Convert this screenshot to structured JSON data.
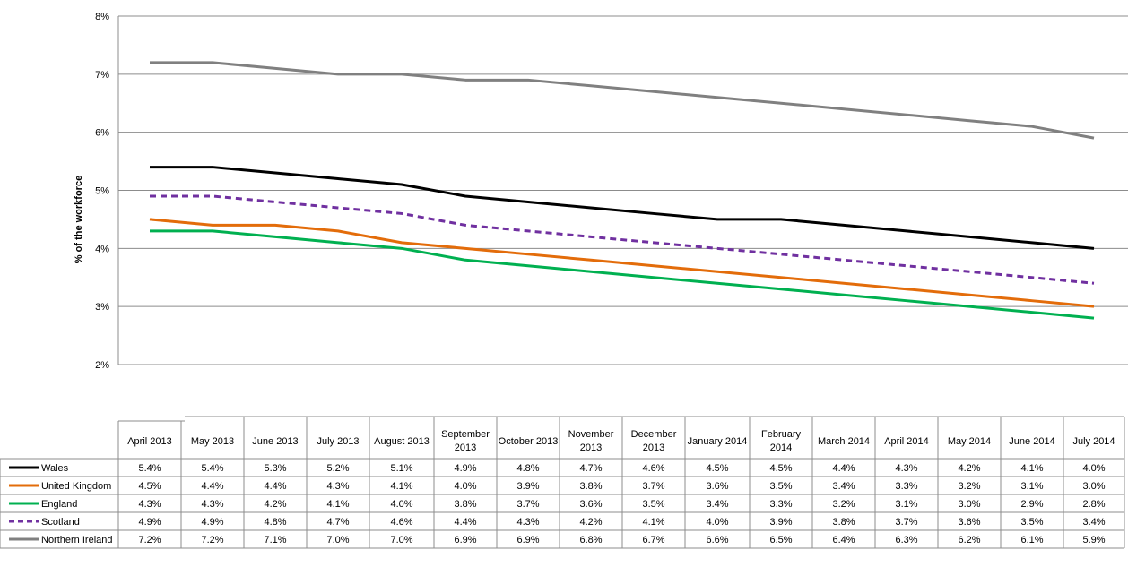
{
  "chart_data": {
    "type": "line",
    "title": "",
    "xlabel": "",
    "ylabel": "% of the workforce",
    "ylim": [
      2,
      8
    ],
    "y_ticks": [
      "2%",
      "3%",
      "4%",
      "5%",
      "6%",
      "7%",
      "8%"
    ],
    "grid": "horizontal",
    "legend_placement": "data table below chart",
    "categories": [
      [
        "April 2013"
      ],
      [
        "May 2013"
      ],
      [
        "June 2013"
      ],
      [
        "July 2013"
      ],
      [
        "August 2013"
      ],
      [
        "September",
        "2013"
      ],
      [
        "October 2013"
      ],
      [
        "November",
        "2013"
      ],
      [
        "December",
        "2013"
      ],
      [
        "January 2014"
      ],
      [
        "February",
        "2014"
      ],
      [
        "March 2014"
      ],
      [
        "April 2014"
      ],
      [
        "May 2014"
      ],
      [
        "June 2014"
      ],
      [
        "July 2014"
      ]
    ],
    "series": [
      {
        "name": "Wales",
        "color": "#000000",
        "dash": "solid",
        "values": [
          5.4,
          5.4,
          5.3,
          5.2,
          5.1,
          4.9,
          4.8,
          4.7,
          4.6,
          4.5,
          4.5,
          4.4,
          4.3,
          4.2,
          4.1,
          4.0
        ],
        "labels": [
          "5.4%",
          "5.4%",
          "5.3%",
          "5.2%",
          "5.1%",
          "4.9%",
          "4.8%",
          "4.7%",
          "4.6%",
          "4.5%",
          "4.5%",
          "4.4%",
          "4.3%",
          "4.2%",
          "4.1%",
          "4.0%"
        ]
      },
      {
        "name": "United Kingdom",
        "color": "#e36c0a",
        "dash": "solid",
        "values": [
          4.5,
          4.4,
          4.4,
          4.3,
          4.1,
          4.0,
          3.9,
          3.8,
          3.7,
          3.6,
          3.5,
          3.4,
          3.3,
          3.2,
          3.1,
          3.0
        ],
        "labels": [
          "4.5%",
          "4.4%",
          "4.4%",
          "4.3%",
          "4.1%",
          "4.0%",
          "3.9%",
          "3.8%",
          "3.7%",
          "3.6%",
          "3.5%",
          "3.4%",
          "3.3%",
          "3.2%",
          "3.1%",
          "3.0%"
        ]
      },
      {
        "name": "England",
        "color": "#00b050",
        "dash": "solid",
        "values": [
          4.3,
          4.3,
          4.2,
          4.1,
          4.0,
          3.8,
          3.7,
          3.6,
          3.5,
          3.4,
          3.3,
          3.2,
          3.1,
          3.0,
          2.9,
          2.8
        ],
        "labels": [
          "4.3%",
          "4.3%",
          "4.2%",
          "4.1%",
          "4.0%",
          "3.8%",
          "3.7%",
          "3.6%",
          "3.5%",
          "3.4%",
          "3.3%",
          "3.2%",
          "3.1%",
          "3.0%",
          "2.9%",
          "2.8%"
        ]
      },
      {
        "name": "Scotland",
        "color": "#7030a0",
        "dash": "dashed",
        "values": [
          4.9,
          4.9,
          4.8,
          4.7,
          4.6,
          4.4,
          4.3,
          4.2,
          4.1,
          4.0,
          3.9,
          3.8,
          3.7,
          3.6,
          3.5,
          3.4
        ],
        "labels": [
          "4.9%",
          "4.9%",
          "4.8%",
          "4.7%",
          "4.6%",
          "4.4%",
          "4.3%",
          "4.2%",
          "4.1%",
          "4.0%",
          "3.9%",
          "3.8%",
          "3.7%",
          "3.6%",
          "3.5%",
          "3.4%"
        ]
      },
      {
        "name": "Northern Ireland",
        "color": "#808080",
        "dash": "solid",
        "values": [
          7.2,
          7.2,
          7.1,
          7.0,
          7.0,
          6.9,
          6.9,
          6.8,
          6.7,
          6.6,
          6.5,
          6.4,
          6.3,
          6.2,
          6.1,
          5.9
        ],
        "labels": [
          "7.2%",
          "7.2%",
          "7.1%",
          "7.0%",
          "7.0%",
          "6.9%",
          "6.9%",
          "6.8%",
          "6.7%",
          "6.6%",
          "6.5%",
          "6.4%",
          "6.3%",
          "6.2%",
          "6.1%",
          "5.9%"
        ]
      }
    ]
  }
}
